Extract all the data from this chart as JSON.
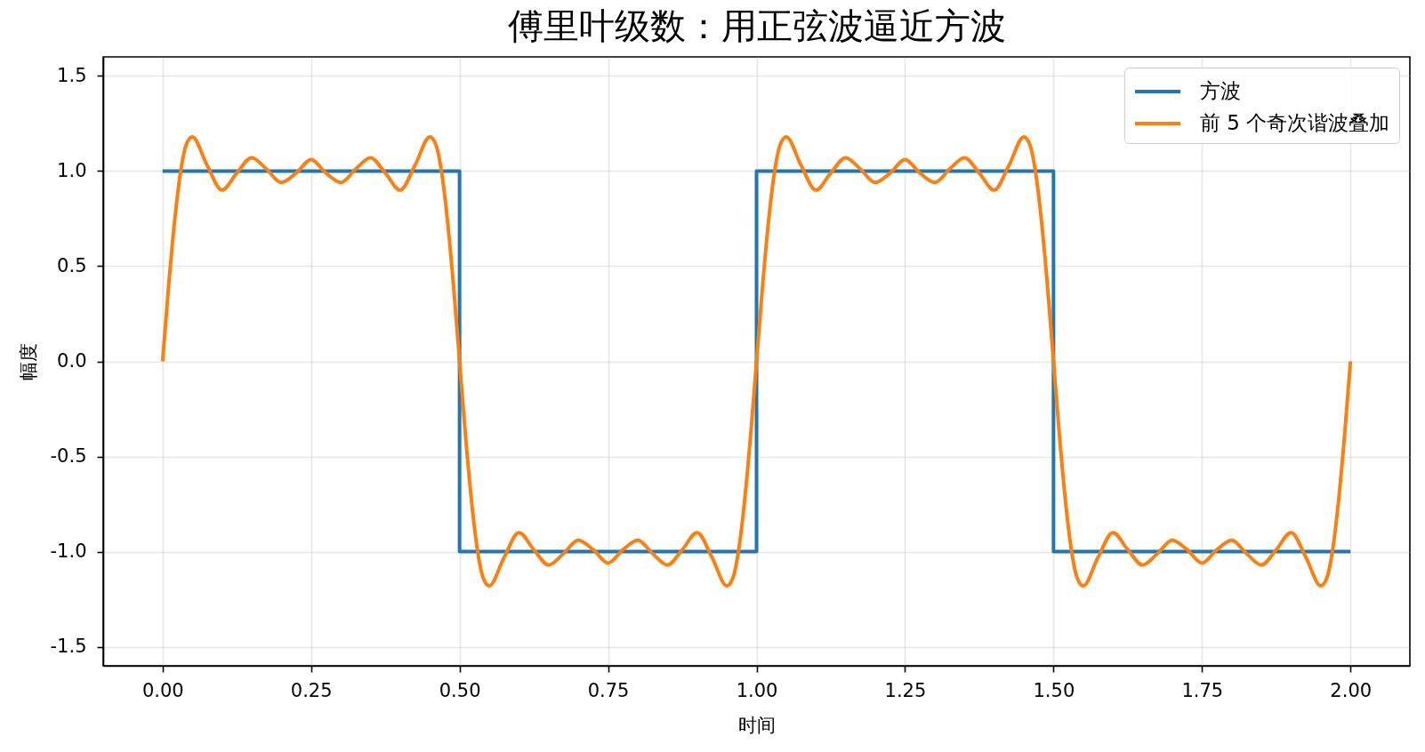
{
  "chart_data": {
    "type": "line",
    "title": "傅里叶级数：用正弦波逼近方波",
    "xlabel": "时间",
    "ylabel": "幅度",
    "xlim": [
      -0.1,
      2.1
    ],
    "ylim": [
      -1.6,
      1.6
    ],
    "xticks": [
      {
        "value": 0,
        "label": "0.00"
      },
      0.25,
      {
        "value": 0.5,
        "label": "0.50"
      },
      0.75,
      {
        "value": 1,
        "label": "1.00"
      },
      1.25,
      {
        "value": 1.5,
        "label": "1.50"
      },
      1.75,
      {
        "value": 2,
        "label": "2.00"
      }
    ],
    "yticks": [
      -1.5,
      {
        "value": -1,
        "label": "-1.0"
      },
      -0.5,
      {
        "value": 0,
        "label": "0.0"
      },
      0.5,
      {
        "value": 1,
        "label": "1.0"
      },
      1.5
    ],
    "grid": true,
    "legend": "top right",
    "series": [
      {
        "name": "方波",
        "type": "step",
        "color": "#1f77b4",
        "x": [
          0,
          0.5,
          1,
          1.5,
          2
        ],
        "values": [
          1,
          -1,
          1,
          -1,
          -1
        ]
      },
      {
        "name": "前 5 个奇次谐波叠加",
        "color": "#ff7f0e",
        "x": [
          0,
          0.01,
          0.02,
          0.03,
          0.04,
          0.05,
          0.075,
          0.1,
          0.125,
          0.15,
          0.175,
          0.2,
          0.225,
          0.25,
          0.275,
          0.3,
          0.325,
          0.35,
          0.375,
          0.4,
          0.425,
          0.45,
          0.46,
          0.47,
          0.48,
          0.49,
          0.5,
          0.51,
          0.52,
          0.53,
          0.54,
          0.55,
          0.575,
          0.6,
          0.625,
          0.65,
          0.675,
          0.7,
          0.725,
          0.75,
          0.775,
          0.8,
          0.825,
          0.85,
          0.875,
          0.9,
          0.925,
          0.95,
          0.96,
          0.97,
          0.98,
          0.99,
          1,
          1.01,
          1.02,
          1.03,
          1.04,
          1.05,
          1.075,
          1.1,
          1.125,
          1.15,
          1.175,
          1.2,
          1.225,
          1.25,
          1.275,
          1.3,
          1.325,
          1.35,
          1.375,
          1.4,
          1.425,
          1.45,
          1.46,
          1.47,
          1.48,
          1.49,
          1.5,
          1.51,
          1.52,
          1.53,
          1.54,
          1.55,
          1.575,
          1.6,
          1.625,
          1.65,
          1.675,
          1.7,
          1.725,
          1.75,
          1.775,
          1.8,
          1.825,
          1.85,
          1.875,
          1.9,
          1.925,
          1.95,
          1.96,
          1.97,
          1.98,
          1.99,
          2
        ],
        "values": [
          0,
          0.39,
          0.73,
          0.99,
          1.14,
          1.18,
          1.03,
          0.9,
          0.99,
          1.07,
          1.01,
          0.94,
          0.99,
          1.06,
          0.99,
          0.94,
          1.01,
          1.07,
          0.99,
          0.9,
          1.03,
          1.18,
          1.14,
          0.99,
          0.73,
          0.39,
          0,
          -0.39,
          -0.73,
          -0.99,
          -1.14,
          -1.18,
          -1.03,
          -0.9,
          -0.99,
          -1.07,
          -1.01,
          -0.94,
          -0.99,
          -1.06,
          -0.99,
          -0.94,
          -1.01,
          -1.07,
          -0.99,
          -0.9,
          -1.03,
          -1.18,
          -1.14,
          -0.99,
          -0.73,
          -0.39,
          0,
          0.39,
          0.73,
          0.99,
          1.14,
          1.18,
          1.03,
          0.9,
          0.99,
          1.07,
          1.01,
          0.94,
          0.99,
          1.06,
          0.99,
          0.94,
          1.01,
          1.07,
          0.99,
          0.9,
          1.03,
          1.18,
          1.14,
          0.99,
          0.73,
          0.39,
          0,
          -0.39,
          -0.73,
          -0.99,
          -1.14,
          -1.18,
          -1.03,
          -0.9,
          -0.99,
          -1.07,
          -1.01,
          -0.94,
          -0.99,
          -1.06,
          -0.99,
          -0.94,
          -1.01,
          -1.07,
          -0.99,
          -0.9,
          -1.03,
          -1.18,
          -1.14,
          -0.99,
          -0.73,
          -0.39,
          0
        ]
      }
    ]
  }
}
